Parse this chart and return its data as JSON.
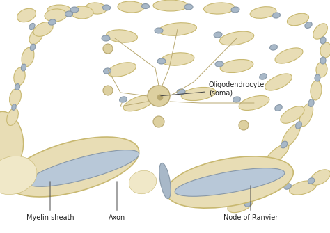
{
  "bg_color": "#ffffff",
  "myelin_color": "#e8ddb5",
  "myelin_edge": "#c8b870",
  "myelin_light": "#f0e8c8",
  "node_color": "#a8b8c8",
  "node_edge": "#8898a8",
  "axon_color": "#b8c8d8",
  "axon_edge": "#8898a8",
  "process_color": "#d8cc9a",
  "process_edge": "#b8a870",
  "soma_color": "#ddd0a0",
  "soma_edge": "#b8a870",
  "line_color": "#888870",
  "labels": {
    "oligodendrocyte": "Oligodendrocyte\n(soma)",
    "myelin": "Myelin sheath",
    "axon": "Axon",
    "node": "Node of Ranvier"
  }
}
